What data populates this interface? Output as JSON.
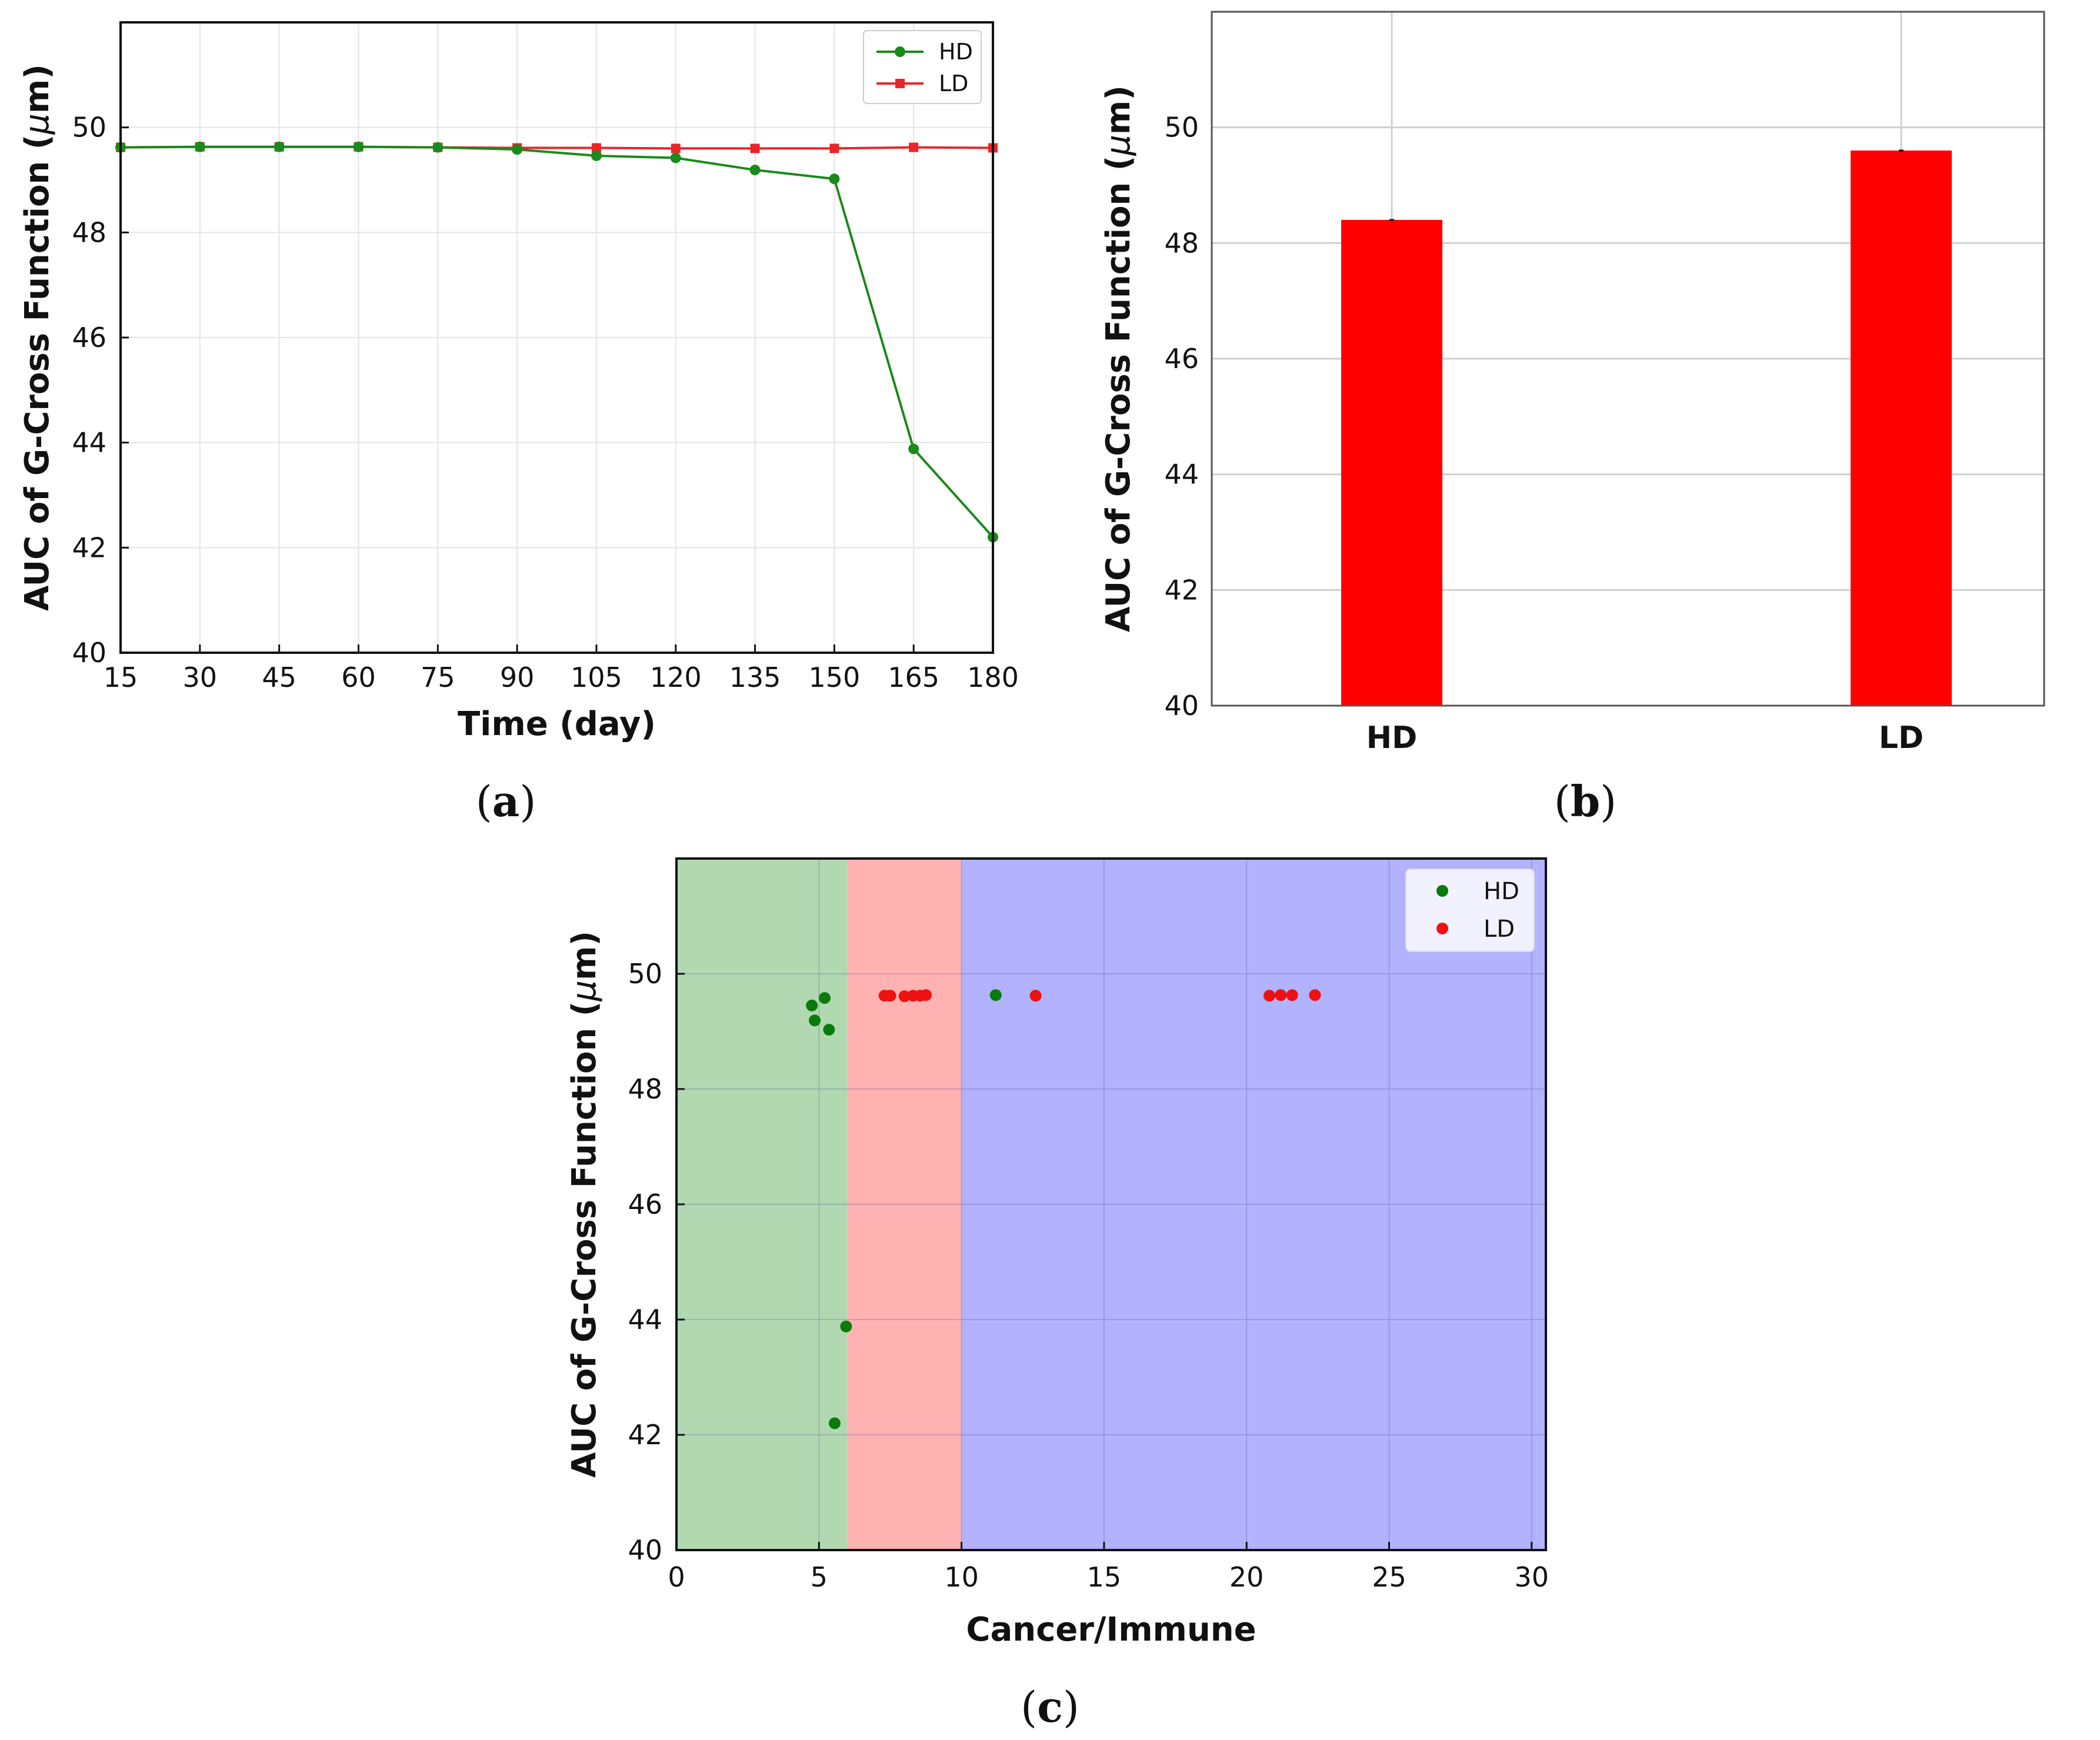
{
  "captions": [
    {
      "open": "(",
      "letter": "a",
      "close": ")"
    },
    {
      "open": "(",
      "letter": "b",
      "close": ")"
    },
    {
      "open": "(",
      "letter": "c",
      "close": ")"
    }
  ],
  "chart_data": [
    {
      "id": "a",
      "type": "line",
      "xlabel": "Time (day)",
      "ylabel": "AUC of G-Cross Function (μm)",
      "xlim": [
        15,
        180
      ],
      "ylim": [
        40,
        52
      ],
      "xticks": [
        "15",
        "30",
        "45",
        "60",
        "75",
        "90",
        "105",
        "120",
        "135",
        "150",
        "165",
        "180"
      ],
      "yticks": [
        "40",
        "42",
        "44",
        "46",
        "48",
        "50"
      ],
      "x": [
        15,
        30,
        45,
        60,
        75,
        90,
        105,
        120,
        135,
        150,
        165,
        180
      ],
      "legend_position": "top-right",
      "series": [
        {
          "name": "HD",
          "color": "#1a8a1a",
          "marker": "circle",
          "values": [
            49.62,
            49.63,
            49.63,
            49.63,
            49.62,
            49.58,
            49.46,
            49.42,
            49.19,
            49.02,
            43.88,
            42.2
          ]
        },
        {
          "name": "LD",
          "color": "#e8262a",
          "marker": "square",
          "values": [
            49.62,
            49.63,
            49.63,
            49.63,
            49.62,
            49.61,
            49.61,
            49.6,
            49.6,
            49.6,
            49.62,
            49.61
          ]
        }
      ]
    },
    {
      "id": "b",
      "type": "bar",
      "ylabel": "AUC of G-Cross Function (μm)",
      "categories": [
        "HD",
        "LD"
      ],
      "values": [
        48.4,
        49.6
      ],
      "ylim": [
        40,
        52
      ],
      "yticks": [
        "40",
        "42",
        "44",
        "46",
        "48",
        "50"
      ],
      "color": "#ff0000"
    },
    {
      "id": "c",
      "type": "scatter",
      "xlabel": "Cancer/Immune",
      "ylabel": "AUC of G-Cross Function (μm)",
      "xlim": [
        0,
        30.5
      ],
      "ylim": [
        40,
        52
      ],
      "xticks": [
        "0",
        "5",
        "10",
        "15",
        "20",
        "25",
        "30"
      ],
      "yticks": [
        "40",
        "42",
        "44",
        "46",
        "48",
        "50"
      ],
      "legend_position": "top-right",
      "regions": [
        {
          "x0": 0,
          "x1": 6,
          "color": "#b2d8b2"
        },
        {
          "x0": 6,
          "x1": 10,
          "color": "#ffb2b2"
        },
        {
          "x0": 10,
          "x1": 30.5,
          "color": "#b2b2ff"
        }
      ],
      "series": [
        {
          "name": "HD",
          "color": "#0a7a0a",
          "points": [
            [
              4.75,
              49.45
            ],
            [
              4.85,
              49.19
            ],
            [
              5.2,
              49.58
            ],
            [
              5.35,
              49.03
            ],
            [
              5.95,
              43.88
            ],
            [
              5.55,
              42.2
            ],
            [
              11.2,
              49.63
            ]
          ]
        },
        {
          "name": "LD",
          "color": "#ee1111",
          "points": [
            [
              7.3,
              49.62
            ],
            [
              7.5,
              49.62
            ],
            [
              8.0,
              49.61
            ],
            [
              8.3,
              49.62
            ],
            [
              8.55,
              49.62
            ],
            [
              8.75,
              49.63
            ],
            [
              12.6,
              49.62
            ],
            [
              20.8,
              49.62
            ],
            [
              21.2,
              49.63
            ],
            [
              21.6,
              49.63
            ],
            [
              22.4,
              49.63
            ]
          ]
        }
      ]
    }
  ]
}
